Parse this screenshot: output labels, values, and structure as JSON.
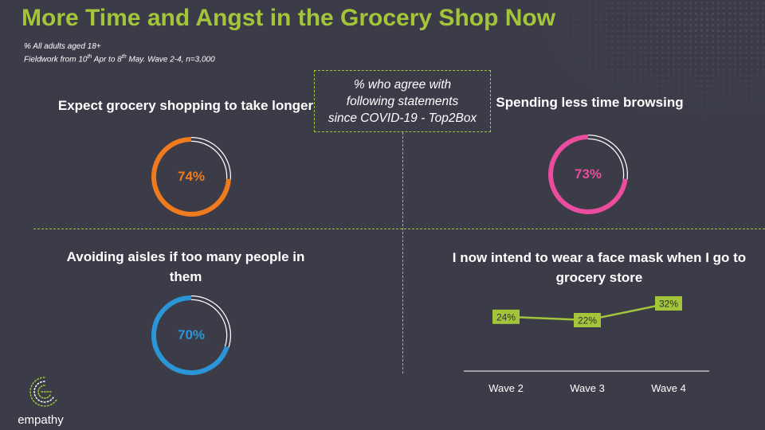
{
  "title": "More Time and Angst in the Grocery Shop Now",
  "subtitle": {
    "line1": "% All adults aged 18+",
    "line2": {
      "a": "Fieldwork from 10",
      "sup1": "th",
      "b": " Apr to 8",
      "sup2": "th",
      "c": " May. Wave 2-4,  n=3,000"
    }
  },
  "center_box": {
    "line1": "% who agree with",
    "line2": "following statements",
    "line3": "since COVID-19 - Top2Box"
  },
  "brand": {
    "name": "empathy"
  },
  "colors": {
    "background": "#3b3c47",
    "accent_green": "#a3c53a",
    "orange": "#f07a1e",
    "pink": "#ea4c9f",
    "blue": "#2a96d8",
    "track": "#ffffff"
  },
  "chart_data": [
    {
      "type": "pie",
      "title": "Expect grocery shopping to take longer",
      "values": [
        74
      ],
      "data_label": "74%",
      "color": "#f07a1e"
    },
    {
      "type": "pie",
      "title": "Spending less time browsing",
      "values": [
        73
      ],
      "data_label": "73%",
      "color": "#ea4c9f"
    },
    {
      "type": "pie",
      "title": "Avoiding aisles if too many people in them",
      "values": [
        70
      ],
      "data_label": "70%",
      "color": "#2a96d8"
    },
    {
      "type": "line",
      "title": "I now intend to wear a face mask when I go to grocery store",
      "categories": [
        "Wave 2",
        "Wave 3",
        "Wave 4"
      ],
      "values": [
        24,
        22,
        32
      ],
      "data_labels": [
        "24%",
        "22%",
        "32%"
      ],
      "color": "#a3c53a",
      "grid": false
    }
  ]
}
